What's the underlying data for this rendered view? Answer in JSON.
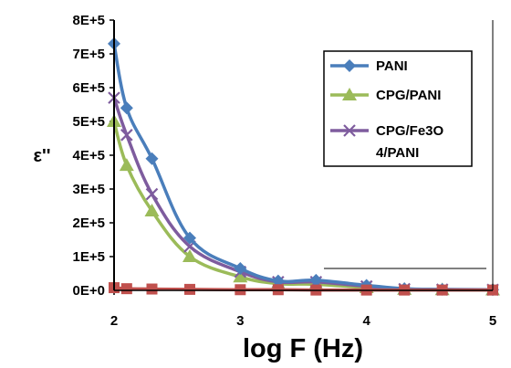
{
  "chart_data": {
    "type": "line",
    "xlabel": "log F (Hz)",
    "ylabel": "ε''",
    "xlim": [
      2,
      5
    ],
    "ylim": [
      0,
      800000
    ],
    "x_ticks": [
      "2",
      "3",
      "4",
      "5"
    ],
    "y_ticks": [
      "0E+0",
      "1E+5",
      "2E+5",
      "3E+5",
      "4E+5",
      "5E+5",
      "6E+5",
      "7E+5",
      "8E+5"
    ],
    "grid": false,
    "legend_position": "top-right",
    "series": [
      {
        "name": "PANI",
        "color": "#4a7ebb",
        "marker": "diamond",
        "x": [
          2.0,
          2.1,
          2.3,
          2.6,
          3.0,
          3.3,
          3.6,
          4.0,
          4.3,
          4.6,
          5.0
        ],
        "y": [
          730000,
          540000,
          390000,
          155000,
          65000,
          28000,
          30000,
          15000,
          5000,
          3000,
          2000
        ]
      },
      {
        "name": "CPG/PANI",
        "color": "#9bbb59",
        "marker": "triangle",
        "x": [
          2.0,
          2.1,
          2.3,
          2.6,
          3.0,
          3.3,
          3.6,
          4.0,
          4.3,
          4.6,
          5.0
        ],
        "y": [
          500000,
          370000,
          235000,
          100000,
          40000,
          20000,
          18000,
          8000,
          3000,
          2000,
          1500
        ]
      },
      {
        "name": "CPG/Fe3O4/PANI",
        "color": "#7e5c9e",
        "marker": "x",
        "x": [
          2.0,
          2.1,
          2.3,
          2.6,
          3.0,
          3.3,
          3.6,
          4.0,
          4.3,
          4.6,
          5.0
        ],
        "y": [
          570000,
          460000,
          285000,
          130000,
          55000,
          25000,
          25000,
          12000,
          4000,
          2500,
          2000
        ]
      },
      {
        "name": "",
        "color": "#c0504d",
        "marker": "square",
        "x": [
          2.0,
          2.1,
          2.3,
          2.6,
          3.0,
          3.3,
          3.6,
          4.0,
          4.3,
          4.6,
          5.0
        ],
        "y": [
          8000,
          5000,
          4000,
          3000,
          2000,
          2000,
          1000,
          1000,
          1000,
          1000,
          1000
        ]
      }
    ],
    "legend": [
      {
        "label_lines": [
          "PANI"
        ]
      },
      {
        "label_lines": [
          "CPG/PANI"
        ]
      },
      {
        "label_lines": [
          "CPG/Fe3O",
          "4/PANI"
        ]
      }
    ]
  }
}
